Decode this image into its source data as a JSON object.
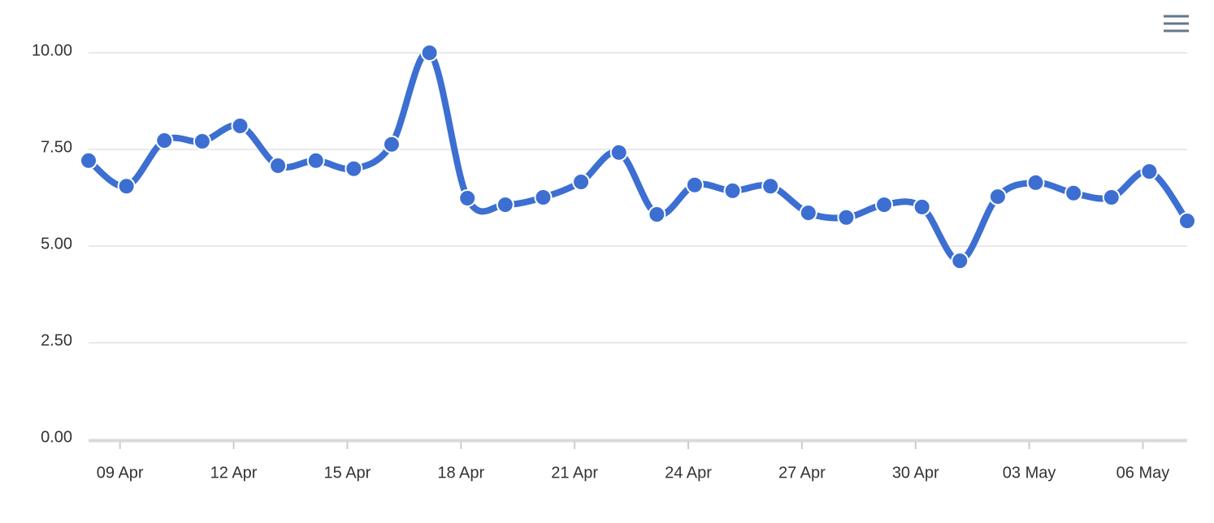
{
  "chart_data": {
    "type": "line",
    "x": [
      8.17,
      9.17,
      10.17,
      11.17,
      12.17,
      13.17,
      14.17,
      15.17,
      16.17,
      17.17,
      18.17,
      19.17,
      20.17,
      21.17,
      22.17,
      23.17,
      24.17,
      25.17,
      26.17,
      27.17,
      28.17,
      29.17,
      30.17,
      31.17,
      32.17,
      33.17,
      34.17,
      35.17,
      36.17,
      37.17
    ],
    "series": [
      {
        "color": "#3c6fd1",
        "values": [
          7.21,
          6.55,
          7.73,
          7.71,
          8.11,
          7.08,
          7.21,
          7.0,
          7.63,
          10.0,
          6.24,
          6.07,
          6.26,
          6.66,
          7.42,
          5.82,
          6.58,
          6.43,
          6.55,
          5.86,
          5.74,
          6.07,
          6.01,
          4.62,
          6.28,
          6.64,
          6.37,
          6.26,
          6.93,
          5.65
        ]
      }
    ],
    "xlim": [
      8.17,
      37.17
    ],
    "xticks": [
      {
        "value": 9,
        "label": "09 Apr"
      },
      {
        "value": 12,
        "label": "12 Apr"
      },
      {
        "value": 15,
        "label": "15 Apr"
      },
      {
        "value": 18,
        "label": "18 Apr"
      },
      {
        "value": 21,
        "label": "21 Apr"
      },
      {
        "value": 24,
        "label": "24 Apr"
      },
      {
        "value": 27,
        "label": "27 Apr"
      },
      {
        "value": 30,
        "label": "30 Apr"
      },
      {
        "value": 33,
        "label": "03 May"
      },
      {
        "value": 36,
        "label": "06 May"
      }
    ],
    "ylim": [
      0,
      10
    ],
    "yticks": [
      {
        "value": 0,
        "label": "0.00"
      },
      {
        "value": 2.5,
        "label": "2.50"
      },
      {
        "value": 5,
        "label": "5.00"
      },
      {
        "value": 7.5,
        "label": "7.50"
      },
      {
        "value": 10,
        "label": "10.00"
      }
    ],
    "grid": true
  }
}
